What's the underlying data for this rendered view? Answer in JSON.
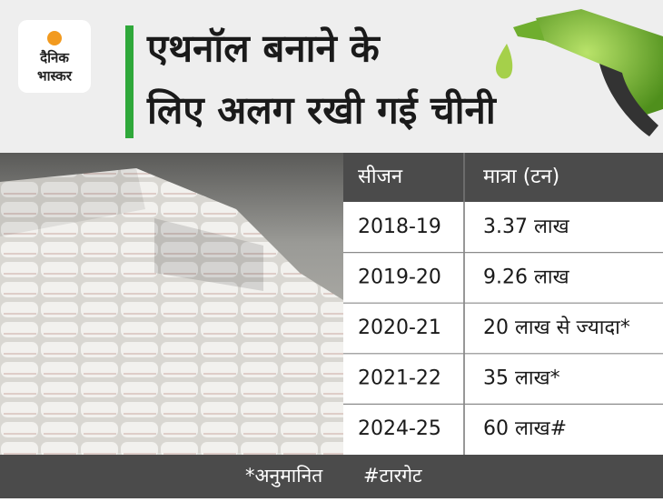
{
  "header": {
    "logo": [
      "दैनिक",
      "भास्कर"
    ],
    "title": [
      "एथनॉल बनाने के",
      "लिए अलग रखी गई चीनी"
    ]
  },
  "table": {
    "columns": [
      "सीजन",
      "मात्रा (टन)"
    ],
    "rows": [
      [
        "2018-19",
        "3.37 लाख"
      ],
      [
        "2019-20",
        "9.26 लाख"
      ],
      [
        "2020-21",
        "20 लाख से ज्यादा*"
      ],
      [
        "2021-22",
        "35 लाख*"
      ],
      [
        "2024-25",
        "60 लाख#"
      ]
    ]
  },
  "footnote": [
    "*अनुमानित",
    "#टारगेट"
  ]
}
